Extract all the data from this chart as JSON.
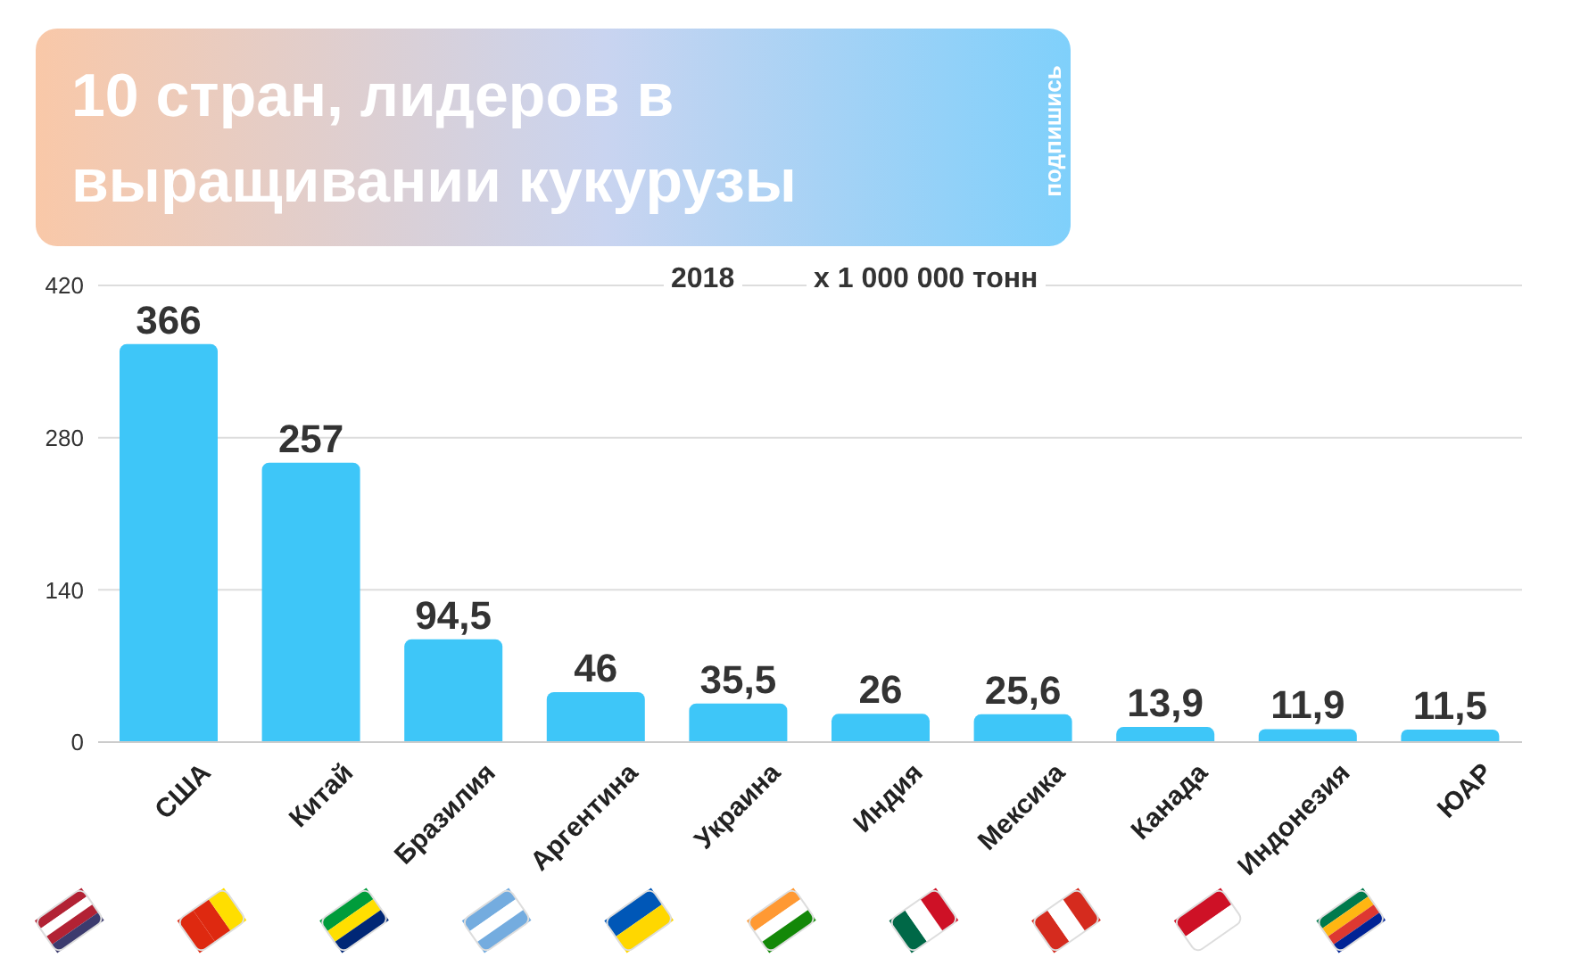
{
  "chart_data": {
    "type": "bar",
    "title": "10 стран, лидеров в выращивании кукурузы",
    "annotations": [
      "подпишись",
      "2018",
      "x 1 000 000 тонн"
    ],
    "categories": [
      "США",
      "Китай",
      "Бразилия",
      "Аргентина",
      "Украина",
      "Индия",
      "Мексика",
      "Канада",
      "Индонезия",
      "ЮАР"
    ],
    "values": [
      366,
      257,
      94.5,
      46,
      35.5,
      26,
      25.6,
      13.9,
      11.9,
      11.5
    ],
    "value_labels": [
      "366",
      "257",
      "94,5",
      "46",
      "35,5",
      "26",
      "25,6",
      "13,9",
      "11,9",
      "11,5"
    ],
    "color": "#3ec6f8",
    "ylim": [
      0,
      420
    ],
    "yticks": [
      0,
      140,
      280,
      420
    ],
    "grid": "y"
  }
}
